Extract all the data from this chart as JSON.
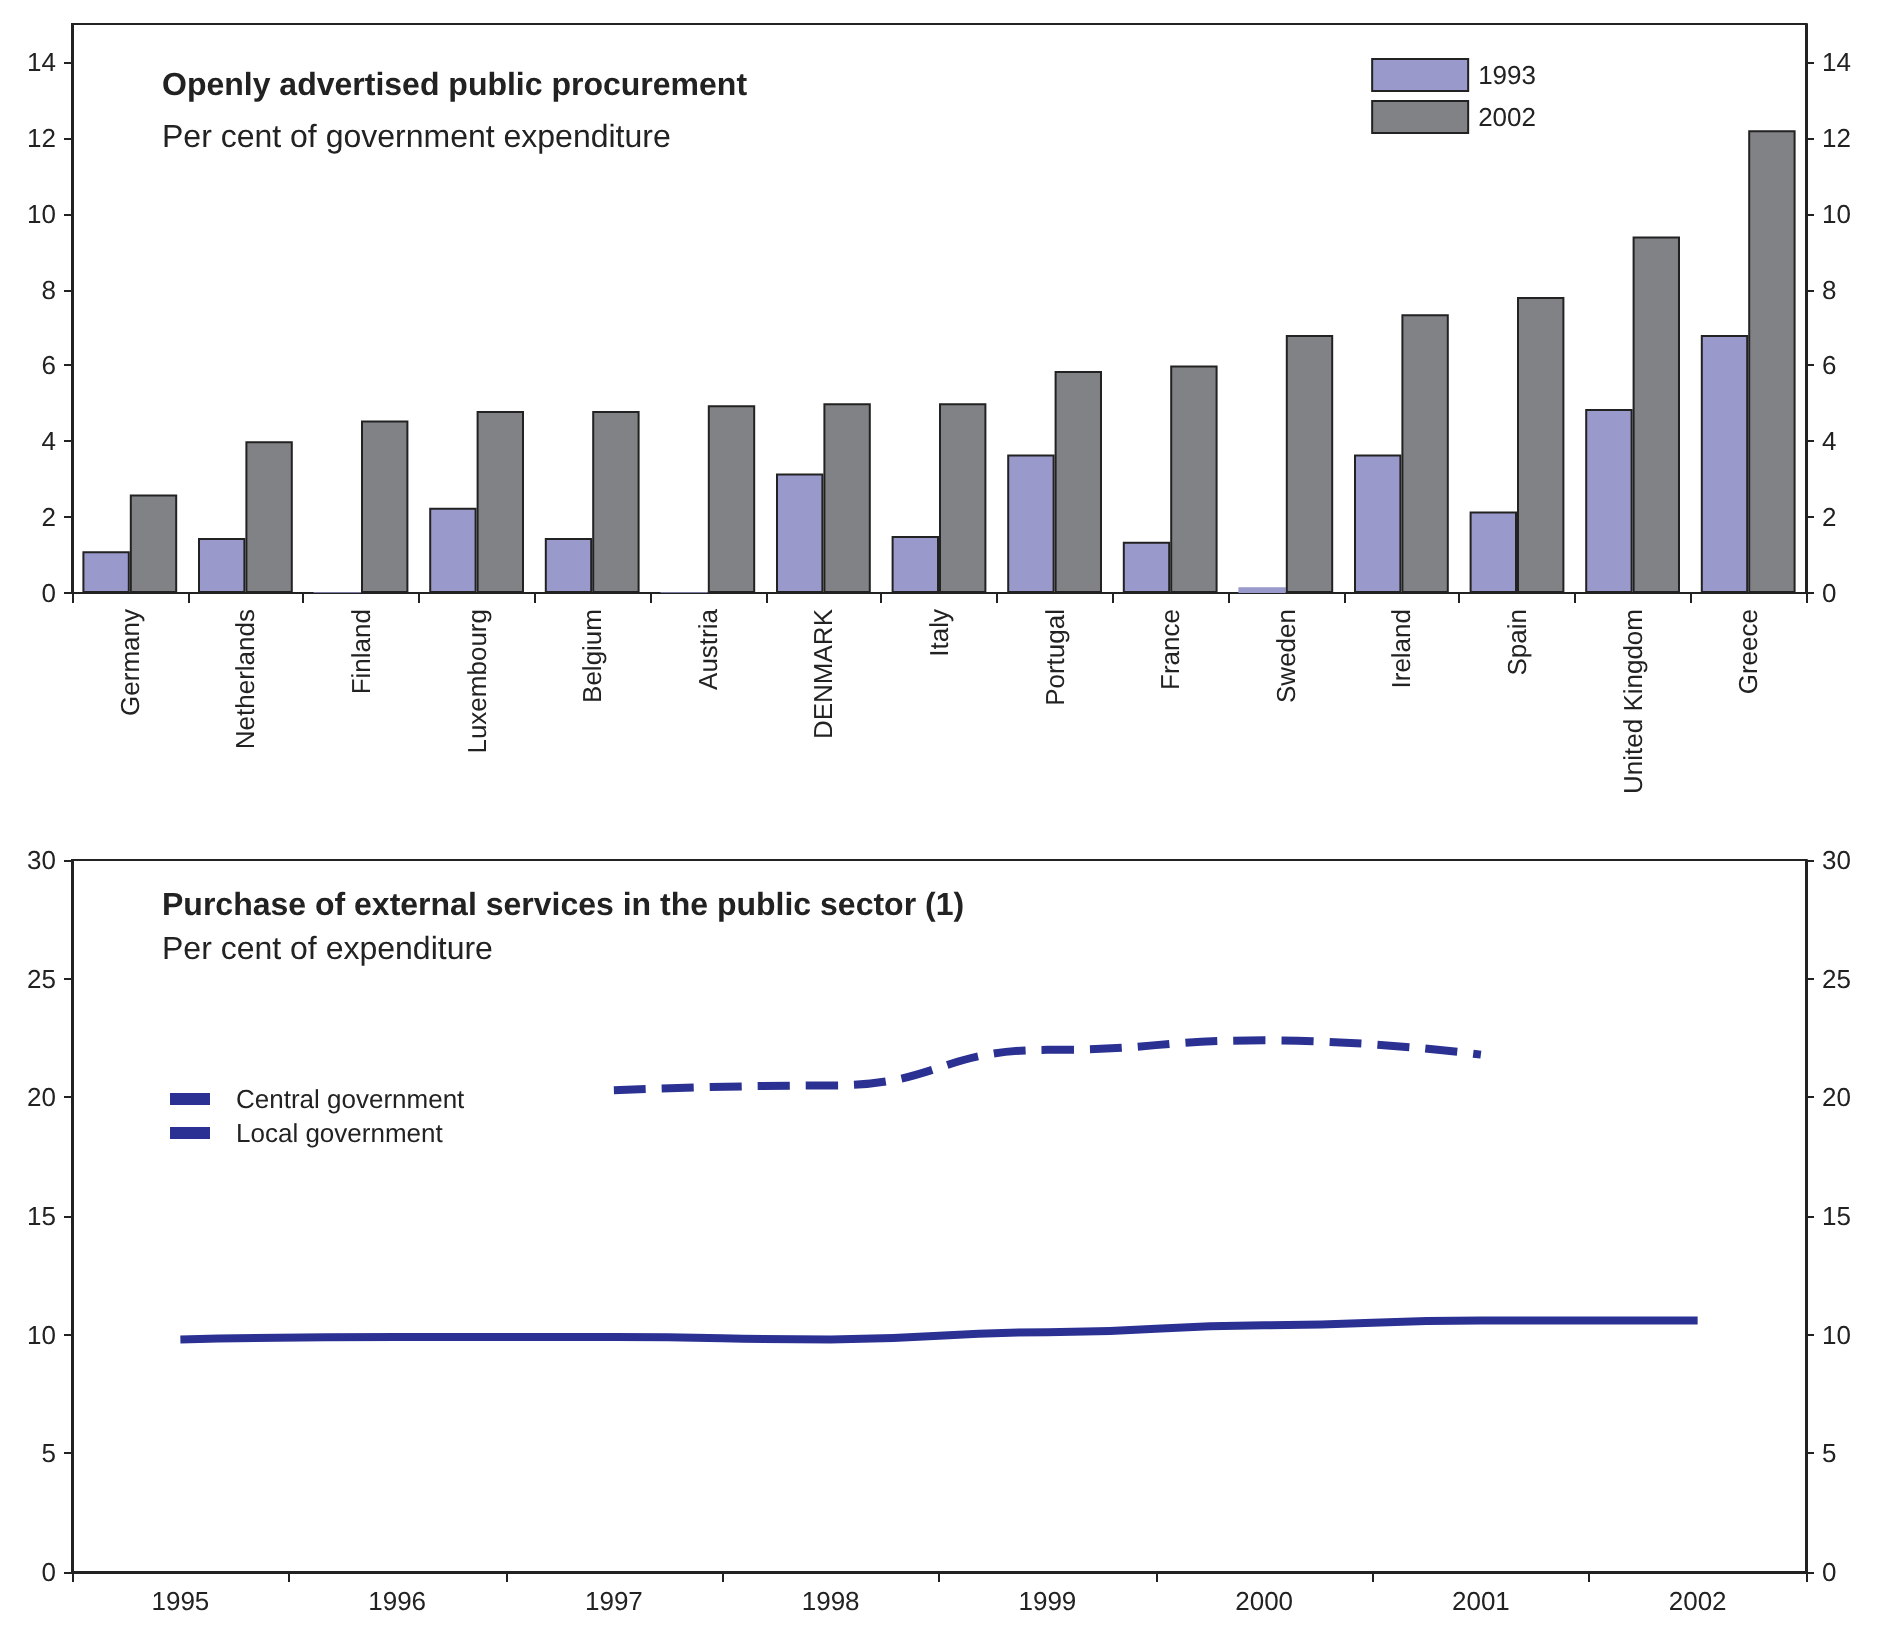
{
  "chart_data": [
    {
      "type": "bar",
      "title": "Openly advertised public procurement",
      "subtitle": "Per cent of government expenditure",
      "categories": [
        "Germany",
        "Netherlands",
        "Finland",
        "Luxembourg",
        "Belgium",
        "Austria",
        "DENMARK",
        "Italy",
        "Portugal",
        "France",
        "Sweden",
        "Ireland",
        "Spain",
        "United Kingdom",
        "Greece"
      ],
      "series": [
        {
          "name": "1993",
          "color": "#9999cc",
          "values": [
            1.1,
            1.45,
            0.02,
            2.25,
            1.45,
            0.02,
            3.15,
            1.5,
            3.65,
            1.35,
            0.15,
            3.65,
            2.15,
            4.85,
            6.8
          ]
        },
        {
          "name": "2002",
          "color": "#808285",
          "values": [
            2.6,
            4.0,
            4.55,
            4.8,
            4.8,
            4.95,
            5.0,
            5.0,
            5.85,
            6.0,
            6.8,
            7.35,
            7.8,
            9.4,
            12.2
          ]
        }
      ],
      "ylim": [
        0,
        15
      ],
      "yticks": [
        0,
        2,
        4,
        6,
        8,
        10,
        12,
        14
      ],
      "y2lim": [
        0,
        15
      ],
      "y2ticks": [
        0,
        2,
        4,
        6,
        8,
        10,
        12,
        14
      ],
      "grid": false,
      "legend": "top right"
    },
    {
      "type": "line",
      "title": "Purchase of external services in the public sector (1)",
      "subtitle": "Per cent of expenditure",
      "categories": [
        "1995",
        "1996",
        "1997",
        "1998",
        "1999",
        "2000",
        "2001",
        "2002"
      ],
      "series": [
        {
          "name": "Central government",
          "color": "#2b3192",
          "line_style": "dashed",
          "values": [
            null,
            null,
            20.3,
            20.5,
            22.0,
            22.4,
            21.8,
            null
          ]
        },
        {
          "name": "Local government",
          "color": "#2b3192",
          "line_style": "solid",
          "values": [
            9.8,
            9.9,
            9.9,
            9.8,
            10.1,
            10.4,
            10.6,
            10.6
          ]
        }
      ],
      "ylim": [
        0,
        30
      ],
      "yticks": [
        0,
        5,
        10,
        15,
        20,
        25,
        30
      ],
      "y2lim": [
        0,
        30
      ],
      "y2ticks": [
        0,
        5,
        10,
        15,
        20,
        25,
        30
      ],
      "grid": false,
      "legend": "left",
      "marker": "none"
    }
  ]
}
